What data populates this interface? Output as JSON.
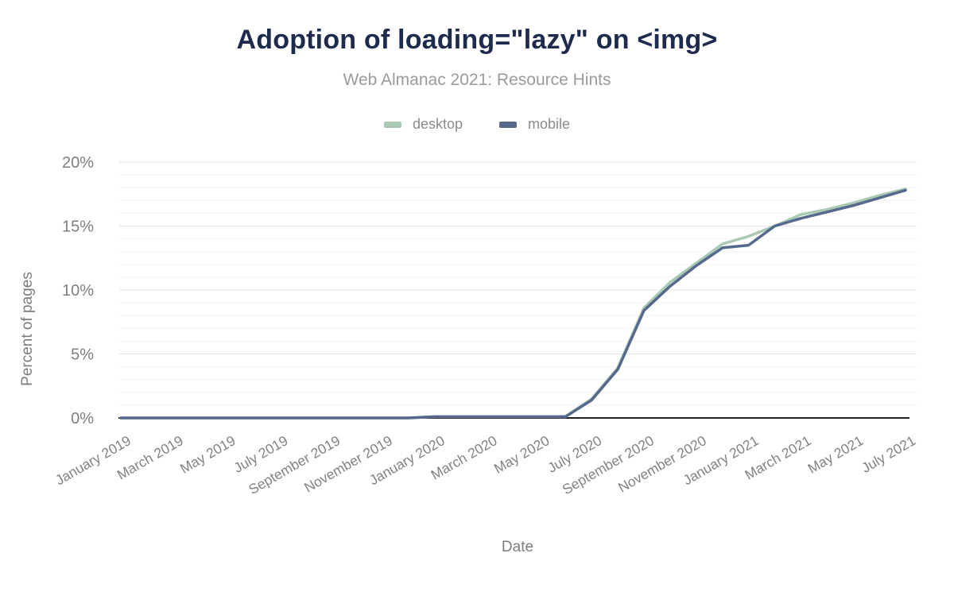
{
  "chart_data": {
    "type": "line",
    "title": "Adoption of loading=\"lazy\" on <img>",
    "subtitle": "Web Almanac 2021: Resource Hints",
    "xlabel": "Date",
    "ylabel": "Percent of pages",
    "ylim": [
      0,
      20
    ],
    "y_tick_labels": [
      "0%",
      "5%",
      "10%",
      "15%",
      "20%"
    ],
    "y_major_step_pct": 5,
    "y_minor_step_pct": 1,
    "grid": "horizontal-only",
    "legend_position": "top-center",
    "title_color": "#1e2b4e",
    "x": [
      "January 2019",
      "February 2019",
      "March 2019",
      "April 2019",
      "May 2019",
      "June 2019",
      "July 2019",
      "August 2019",
      "September 2019",
      "October 2019",
      "November 2019",
      "December 2019",
      "January 2020",
      "February 2020",
      "March 2020",
      "April 2020",
      "May 2020",
      "June 2020",
      "July 2020",
      "August 2020",
      "September 2020",
      "October 2020",
      "November 2020",
      "December 2020",
      "January 2021",
      "February 2021",
      "March 2021",
      "April 2021",
      "May 2021",
      "June 2021",
      "July 2021"
    ],
    "x_tick_every": 2,
    "x_tick_labels": [
      "January 2019",
      "March 2019",
      "May 2019",
      "July 2019",
      "September 2019",
      "November 2019",
      "January 2020",
      "March 2020",
      "May 2020",
      "July 2020",
      "September 2020",
      "November 2020",
      "January 2021",
      "March 2021",
      "May 2021",
      "July 2021"
    ],
    "series": [
      {
        "name": "desktop",
        "color": "#a9c9b4",
        "values": [
          0,
          0,
          0,
          0,
          0,
          0,
          0,
          0,
          0,
          0,
          0,
          0,
          0.1,
          0.1,
          0.1,
          0.1,
          0.1,
          0.1,
          1.5,
          3.9,
          8.6,
          10.6,
          12.1,
          13.6,
          14.2,
          15.0,
          15.9,
          16.3,
          16.8,
          17.4,
          17.9
        ]
      },
      {
        "name": "mobile",
        "color": "#56698d",
        "values": [
          0,
          0,
          0,
          0,
          0,
          0,
          0,
          0,
          0,
          0,
          0,
          0,
          0.1,
          0.1,
          0.1,
          0.1,
          0.1,
          0.1,
          1.4,
          3.8,
          8.4,
          10.3,
          11.9,
          13.3,
          13.5,
          15.0,
          15.6,
          16.1,
          16.6,
          17.2,
          17.8
        ]
      }
    ]
  }
}
